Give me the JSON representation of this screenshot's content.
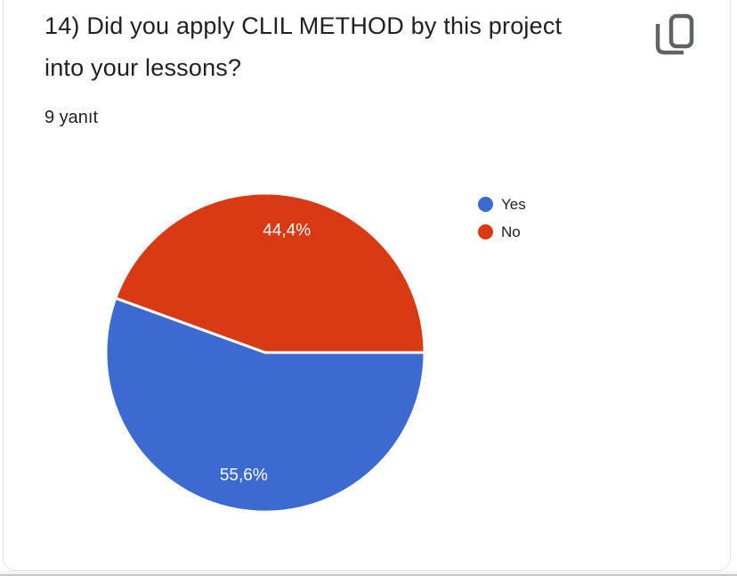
{
  "card": {
    "question_title": "14) Did you apply CLIL METHOD by this project into your lessons?",
    "responses_label": "9 yanıt"
  },
  "legend": {
    "items": [
      {
        "label": "Yes",
        "color": "#3b6bd1"
      },
      {
        "label": "No",
        "color": "#da3a13"
      }
    ]
  },
  "chart_data": {
    "type": "pie",
    "title": "14) Did you apply CLIL METHOD by this project into your lessons?",
    "subtitle": "9 yanıt",
    "total_responses": 9,
    "categories": [
      "Yes",
      "No"
    ],
    "values": [
      5,
      4
    ],
    "percentages": [
      55.6,
      44.4
    ],
    "percent_labels": [
      "55,6%",
      "44,4%"
    ],
    "colors": [
      "#3b6bd1",
      "#da3a13"
    ],
    "slice_border_color": "#ffffff",
    "label_color": "#ffffff",
    "start_angle_deg": 0,
    "direction": "clockwise",
    "legend_position": "right"
  },
  "icons": {
    "copy_icon_color": "#5f6368"
  }
}
